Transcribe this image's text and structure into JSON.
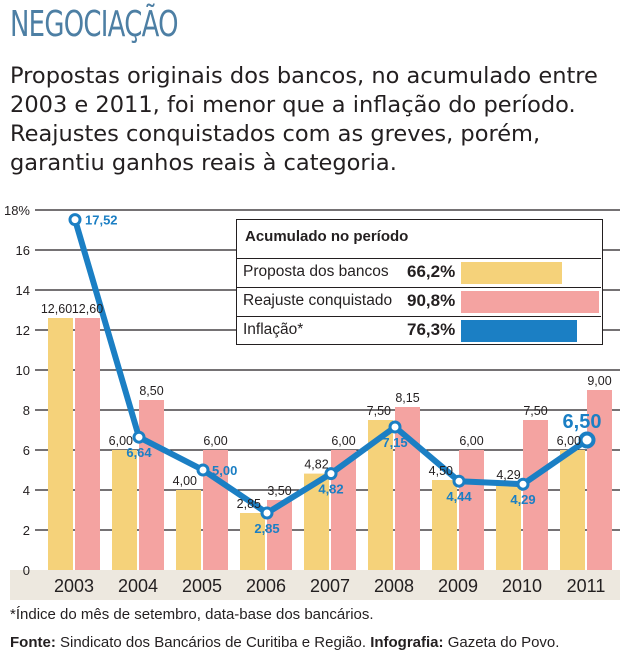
{
  "title": "NEGOCIAÇÃO",
  "subtitle": "Propostas originais dos bancos, no acumulado entre 2003 e 2011, foi menor que a inflação do período. Reajustes conquistados com as greves, porém, garantiu ganhos reais à categoria.",
  "colors": {
    "proposta": "#f5d27a",
    "reajuste": "#f4a3a1",
    "inflacao": "#1b7fc4",
    "title": "#4d7fa4",
    "axis_band": "#ede8df"
  },
  "legend": {
    "title": "Acumulado no período",
    "items": [
      {
        "label": "Proposta dos bancos",
        "value": "66,2%",
        "amount": 66.2
      },
      {
        "label": "Reajuste conquistado",
        "value": "90,8%",
        "amount": 90.8
      },
      {
        "label": "Inflação*",
        "value": "76,3%",
        "amount": 76.3
      }
    ]
  },
  "chart_data": {
    "type": "bar",
    "title": "NEGOCIAÇÃO",
    "xlabel": "",
    "ylabel": "%",
    "ylim": [
      0,
      18
    ],
    "yticks": [
      0,
      2,
      4,
      6,
      8,
      10,
      12,
      14,
      16,
      18
    ],
    "ytick_labels": [
      "0",
      "2",
      "4",
      "6",
      "8",
      "10",
      "12",
      "14",
      "16",
      "18%"
    ],
    "grid": true,
    "categories": [
      "2003",
      "2004",
      "2005",
      "2006",
      "2007",
      "2008",
      "2009",
      "2010",
      "2011"
    ],
    "series": [
      {
        "name": "Proposta dos bancos",
        "type": "bar",
        "values": [
          12.6,
          6.0,
          4.0,
          2.85,
          4.82,
          7.5,
          4.5,
          4.29,
          6.0
        ],
        "labels": [
          "12,60",
          "6,00",
          "4,00",
          "2,85",
          "4,82",
          "7,50",
          "4,50",
          "4,29",
          "6,00"
        ]
      },
      {
        "name": "Reajuste conquistado",
        "type": "bar",
        "values": [
          12.6,
          8.5,
          6.0,
          3.5,
          6.0,
          8.15,
          6.0,
          7.5,
          9.0
        ],
        "labels": [
          "12,60",
          "8,50",
          "6,00",
          "3,50",
          "6,00",
          "8,15",
          "6,00",
          "7,50",
          "9,00"
        ]
      },
      {
        "name": "Inflação",
        "type": "line",
        "values": [
          17.52,
          6.64,
          5.0,
          2.85,
          4.82,
          7.15,
          4.44,
          4.29,
          6.5
        ],
        "labels": [
          "17,52",
          "6,64",
          "5,00",
          "2,85",
          "4,82",
          "7,15",
          "4,44",
          "4,29",
          "6,50"
        ]
      }
    ],
    "legend_position": "top-right"
  },
  "footnote": "*Índice do mês de setembro, data-base dos bancários.",
  "source": {
    "fonte_label": "Fonte:",
    "fonte_text": " Sindicato dos Bancários de Curitiba e Região. ",
    "info_label": "Infografia:",
    "info_text": " Gazeta do Povo."
  }
}
